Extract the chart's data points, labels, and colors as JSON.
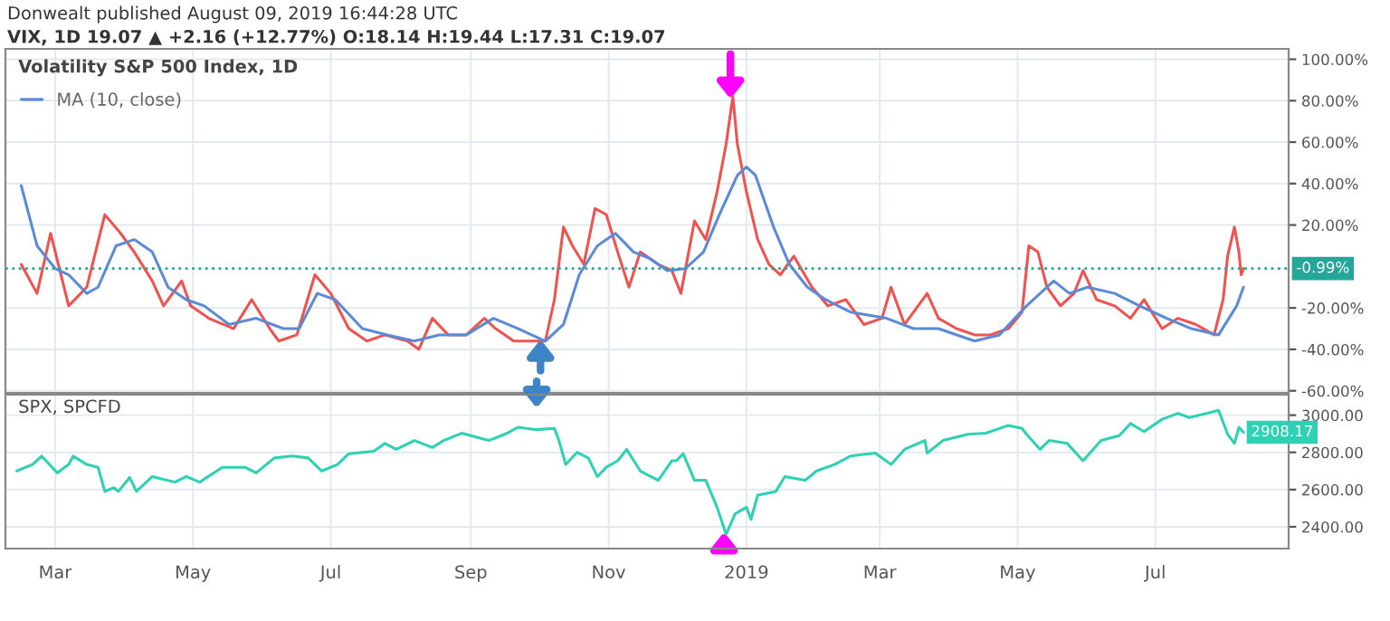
{
  "chart_data": [
    {
      "type": "line",
      "title": "Volatility S&P 500 Index, 1D",
      "annotations": [
        "Donwealt published August 09, 2019 16:44:28 UTC",
        "VIX, 1D 19.07 ▲ +2.16 (+12.77%) O:18.14 H:19.44 L:17.31 C:19.07"
      ],
      "series": [
        {
          "color": "#ef5350",
          "x": [
            "2018-02-14",
            "2018-02-21",
            "2018-02-27",
            "2018-03-07",
            "2018-03-15",
            "2018-03-23",
            "2018-03-30",
            "2018-04-05",
            "2018-04-13",
            "2018-04-18",
            "2018-04-26",
            "2018-04-30",
            "2018-05-08",
            "2018-05-19",
            "2018-05-27",
            "2018-06-04",
            "2018-06-08",
            "2018-06-16",
            "2018-06-24",
            "2018-07-01",
            "2018-07-09",
            "2018-07-17",
            "2018-07-25",
            "2018-08-04",
            "2018-08-09",
            "2018-08-15",
            "2018-08-22",
            "2018-08-30",
            "2018-09-07",
            "2018-09-12",
            "2018-09-20",
            "2018-09-28",
            "2018-10-04",
            "2018-10-08",
            "2018-10-12",
            "2018-10-16",
            "2018-10-21",
            "2018-10-26",
            "2018-10-31",
            "2018-11-05",
            "2018-11-10",
            "2018-11-15",
            "2018-11-23",
            "2018-11-29",
            "2018-12-03",
            "2018-12-09",
            "2018-12-14",
            "2018-12-19",
            "2018-12-23",
            "2018-12-26",
            "2018-12-28",
            "2019-01-01",
            "2019-01-06",
            "2019-01-11",
            "2019-01-16",
            "2019-01-22",
            "2019-01-30",
            "2019-02-06",
            "2019-02-14",
            "2019-02-22",
            "2019-03-02",
            "2019-03-06",
            "2019-03-12",
            "2019-03-22",
            "2019-03-27",
            "2019-04-04",
            "2019-04-12",
            "2019-04-19",
            "2019-04-27",
            "2019-05-03",
            "2019-05-06",
            "2019-05-10",
            "2019-05-14",
            "2019-05-20",
            "2019-05-26",
            "2019-05-30",
            "2019-06-05",
            "2019-06-13",
            "2019-06-20",
            "2019-06-26",
            "2019-07-04",
            "2019-07-11",
            "2019-07-19",
            "2019-07-27",
            "2019-07-31",
            "2019-08-02",
            "2019-08-05",
            "2019-08-07",
            "2019-08-08",
            "2019-08-09"
          ],
          "values": [
            1,
            -13,
            16,
            -19,
            -10,
            25,
            16,
            7,
            -7,
            -19,
            -7,
            -19,
            -25,
            -30,
            -16,
            -30,
            -36,
            -33,
            -4,
            -13,
            -30,
            -36,
            -33,
            -36,
            -40,
            -25,
            -33,
            -33,
            -25,
            -30,
            -36,
            -36,
            -36,
            -16,
            19,
            10,
            1,
            28,
            25,
            7,
            -10,
            7,
            1,
            -2,
            -13,
            22,
            13,
            36,
            59,
            82,
            59,
            36,
            13,
            1,
            -4,
            5,
            -10,
            -19,
            -16,
            -28,
            -25,
            -10,
            -28,
            -13,
            -25,
            -30,
            -33,
            -33,
            -30,
            -22,
            10,
            7,
            -10,
            -19,
            -13,
            -2,
            -16,
            -19,
            -25,
            -16,
            -30,
            -25,
            -28,
            -33,
            -16,
            5,
            19,
            7,
            -4,
            -1
          ]
        },
        {
          "name": "MA (10, close)",
          "color": "#5b8bd6",
          "x": [
            "2018-02-14",
            "2018-02-21",
            "2018-03-01",
            "2018-03-07",
            "2018-03-15",
            "2018-03-20",
            "2018-03-28",
            "2018-04-05",
            "2018-04-13",
            "2018-04-20",
            "2018-04-28",
            "2018-05-06",
            "2018-05-17",
            "2018-05-29",
            "2018-06-10",
            "2018-06-17",
            "2018-06-25",
            "2018-07-03",
            "2018-07-15",
            "2018-07-26",
            "2018-08-07",
            "2018-08-18",
            "2018-08-30",
            "2018-09-11",
            "2018-09-22",
            "2018-10-04",
            "2018-10-12",
            "2018-10-19",
            "2018-10-27",
            "2018-11-04",
            "2018-11-12",
            "2018-11-19",
            "2018-11-27",
            "2018-12-05",
            "2018-12-13",
            "2018-12-20",
            "2018-12-28",
            "2019-01-01",
            "2019-01-05",
            "2019-01-13",
            "2019-01-20",
            "2019-01-28",
            "2019-02-05",
            "2019-02-16",
            "2019-03-04",
            "2019-03-16",
            "2019-03-27",
            "2019-04-12",
            "2019-04-23",
            "2019-05-05",
            "2019-05-17",
            "2019-05-24",
            "2019-06-01",
            "2019-06-13",
            "2019-06-24",
            "2019-07-06",
            "2019-07-17",
            "2019-07-29",
            "2019-08-06",
            "2019-08-09"
          ],
          "values": [
            39,
            10,
            -1,
            -4,
            -13,
            -10,
            10,
            13,
            7,
            -10,
            -16,
            -19,
            -28,
            -25,
            -30,
            -30,
            -13,
            -16,
            -30,
            -33,
            -36,
            -33,
            -33,
            -25,
            -30,
            -36,
            -28,
            -4,
            10,
            16,
            7,
            4,
            -2,
            -1,
            7,
            25,
            44,
            48,
            44,
            19,
            1,
            -10,
            -16,
            -22,
            -25,
            -30,
            -30,
            -36,
            -33,
            -19,
            -7,
            -13,
            -10,
            -13,
            -19,
            -25,
            -30,
            -33,
            -19,
            -10
          ]
        }
      ],
      "xlim": [
        "2018-02-07",
        "2019-08-29"
      ],
      "ylim": [
        -61,
        105
      ],
      "yticks": [
        {
          "value": -60,
          "label": "-60.00%"
        },
        {
          "value": -40,
          "label": "-40.00%"
        },
        {
          "value": -20,
          "label": "-20.00%"
        },
        {
          "value": 20,
          "label": "20.00%"
        },
        {
          "value": 40,
          "label": "40.00%"
        },
        {
          "value": 60,
          "label": "60.00%"
        },
        {
          "value": 80,
          "label": "80.00%"
        },
        {
          "value": 100,
          "label": "100.00%"
        }
      ],
      "ref_lines": [
        {
          "axis": "y",
          "value": -0.99,
          "label": "-0.99%",
          "color": "#26a69a",
          "line_style": "dotted"
        }
      ],
      "tick_labels": "y",
      "grid": true,
      "legend": "top left",
      "line_style": "solid"
    },
    {
      "type": "line",
      "title": "SPX, SPCFD",
      "series": [
        {
          "color": "#2ed1b3",
          "x": [
            "2018-02-12",
            "2018-02-19",
            "2018-02-23",
            "2018-03-02",
            "2018-03-07",
            "2018-03-09",
            "2018-03-15",
            "2018-03-20",
            "2018-03-23",
            "2018-03-27",
            "2018-03-29",
            "2018-04-03",
            "2018-04-06",
            "2018-04-13",
            "2018-04-23",
            "2018-04-28",
            "2018-05-04",
            "2018-05-14",
            "2018-05-24",
            "2018-05-29",
            "2018-06-06",
            "2018-06-14",
            "2018-06-21",
            "2018-06-27",
            "2018-07-04",
            "2018-07-09",
            "2018-07-20",
            "2018-07-25",
            "2018-07-30",
            "2018-08-07",
            "2018-08-15",
            "2018-08-20",
            "2018-08-28",
            "2018-09-04",
            "2018-09-09",
            "2018-09-16",
            "2018-09-22",
            "2018-09-30",
            "2018-10-08",
            "2018-10-10",
            "2018-10-13",
            "2018-10-18",
            "2018-10-23",
            "2018-10-27",
            "2018-10-31",
            "2018-11-05",
            "2018-11-09",
            "2018-11-15",
            "2018-11-23",
            "2018-11-29",
            "2018-12-01",
            "2018-12-04",
            "2018-12-09",
            "2018-12-14",
            "2018-12-19",
            "2018-12-23",
            "2018-12-27",
            "2019-01-01",
            "2019-01-03",
            "2019-01-06",
            "2019-01-14",
            "2019-01-18",
            "2019-01-27",
            "2019-02-01",
            "2019-02-09",
            "2019-02-16",
            "2019-02-27",
            "2019-03-06",
            "2019-03-12",
            "2019-03-21",
            "2019-03-22",
            "2019-03-29",
            "2019-04-09",
            "2019-04-17",
            "2019-04-27",
            "2019-05-03",
            "2019-05-05",
            "2019-05-11",
            "2019-05-15",
            "2019-05-23",
            "2019-05-30",
            "2019-06-07",
            "2019-06-15",
            "2019-06-20",
            "2019-06-26",
            "2019-07-04",
            "2019-07-11",
            "2019-07-16",
            "2019-07-24",
            "2019-07-29",
            "2019-08-02",
            "2019-08-05",
            "2019-08-07",
            "2019-08-09"
          ],
          "values": [
            2700,
            2735,
            2780,
            2690,
            2735,
            2780,
            2735,
            2720,
            2590,
            2610,
            2590,
            2665,
            2590,
            2670,
            2640,
            2670,
            2640,
            2720,
            2720,
            2690,
            2770,
            2780,
            2770,
            2700,
            2735,
            2793,
            2806,
            2848,
            2816,
            2864,
            2826,
            2864,
            2903,
            2880,
            2864,
            2897,
            2935,
            2922,
            2929,
            2864,
            2735,
            2800,
            2770,
            2670,
            2720,
            2755,
            2816,
            2700,
            2650,
            2755,
            2755,
            2793,
            2650,
            2650,
            2505,
            2360,
            2470,
            2505,
            2440,
            2570,
            2590,
            2670,
            2650,
            2700,
            2735,
            2780,
            2796,
            2735,
            2816,
            2864,
            2796,
            2864,
            2897,
            2903,
            2945,
            2929,
            2897,
            2816,
            2864,
            2848,
            2755,
            2864,
            2890,
            2955,
            2912,
            2978,
            3010,
            2987,
            3010,
            3026,
            2897,
            2848,
            2935,
            2908
          ]
        }
      ],
      "annotations": [
        {
          "text": "2908.17",
          "x": "2019-08-09",
          "y": 2908.17
        }
      ],
      "xlim": [
        "2018-02-07",
        "2019-08-29"
      ],
      "xticks": [
        {
          "value": "2018-03-01",
          "label": "Mar"
        },
        {
          "value": "2018-05-01",
          "label": "May"
        },
        {
          "value": "2018-07-01",
          "label": "Jul"
        },
        {
          "value": "2018-09-01",
          "label": "Sep"
        },
        {
          "value": "2018-11-01",
          "label": "Nov"
        },
        {
          "value": "2019-01-01",
          "label": "2019"
        },
        {
          "value": "2019-03-01",
          "label": "Mar"
        },
        {
          "value": "2019-05-01",
          "label": "May"
        },
        {
          "value": "2019-07-01",
          "label": "Jul"
        }
      ],
      "ylim": [
        2283,
        3110
      ],
      "yticks": [
        {
          "value": 2400,
          "label": "2400.00"
        },
        {
          "value": 2600,
          "label": "2600.00"
        },
        {
          "value": 2800,
          "label": "2800.00"
        },
        {
          "value": 3000,
          "label": "3000.00"
        }
      ],
      "grid": true,
      "line_style": "solid"
    }
  ]
}
